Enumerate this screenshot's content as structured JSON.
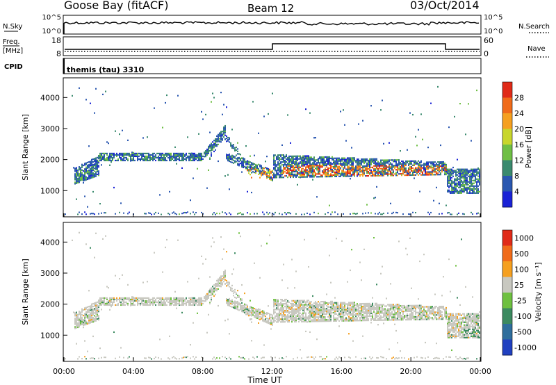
{
  "header": {
    "station": "Goose Bay (fitACF)",
    "beam": "Beam 12",
    "date": "03/Oct/2014"
  },
  "params": {
    "nsky_label": "N.Sky",
    "nsearch_label": "N.Search",
    "nsky_ticks": [
      "10^5",
      "10^0"
    ],
    "nsearch_ticks": [
      "10^5",
      "10^0"
    ],
    "freq_label_1": "Freq.",
    "freq_label_2": "[MHz]",
    "freq_ticks": [
      "18",
      "8"
    ],
    "nave_label": "Nave",
    "nave_ticks": [
      "60",
      "0"
    ],
    "cpid_label": "CPID",
    "cpid_value": "themis (tau) 3310"
  },
  "chart_data": [
    {
      "type": "heatmap",
      "panel": "power",
      "ylabel": "Slant Range [km]",
      "yticks": [
        1000,
        2000,
        3000,
        4000
      ],
      "ylim": [
        200,
        4500
      ],
      "xlim_hours": [
        0,
        24
      ],
      "colorbar": {
        "label": "Power [dB]",
        "ticks": [
          "4",
          "8",
          "12",
          "16",
          "20",
          "24",
          "28"
        ],
        "colors": [
          "#1a22d6",
          "#2a57b0",
          "#3a8a6e",
          "#6fbf45",
          "#c8d62c",
          "#f5a020",
          "#f06b1a",
          "#e02a18"
        ]
      },
      "bands": [
        {
          "name": "main echo band",
          "hours": [
            0.5,
            10.5
          ],
          "range_km": [
            1300,
            2200
          ]
        },
        {
          "name": "strong echo",
          "hours": [
            12.5,
            22
          ],
          "range_km": [
            1400,
            1900
          ]
        },
        {
          "name": "V feature peak",
          "hours": [
            9.0,
            9.5
          ],
          "range_km": [
            2700,
            3000
          ]
        }
      ]
    },
    {
      "type": "heatmap",
      "panel": "velocity",
      "ylabel": "Slant Range [km]",
      "yticks": [
        1000,
        2000,
        3000,
        4000
      ],
      "ylim": [
        200,
        4500
      ],
      "xlim_hours": [
        0,
        24
      ],
      "colorbar": {
        "label": "Velocity [m s⁻¹]",
        "ticks": [
          "1000",
          "500",
          "100",
          "25",
          "-25",
          "-100",
          "-500",
          "-1000"
        ],
        "colors": [
          "#2040c0",
          "#2f6e9c",
          "#3c8a60",
          "#6ec040",
          "#c8c8c0",
          "#f5a020",
          "#f06b1a",
          "#e02a18"
        ]
      }
    }
  ],
  "xaxis": {
    "ticks": [
      "00:00",
      "04:00",
      "08:00",
      "12:00",
      "16:00",
      "20:00",
      "00:00"
    ],
    "label": "Time UT"
  }
}
